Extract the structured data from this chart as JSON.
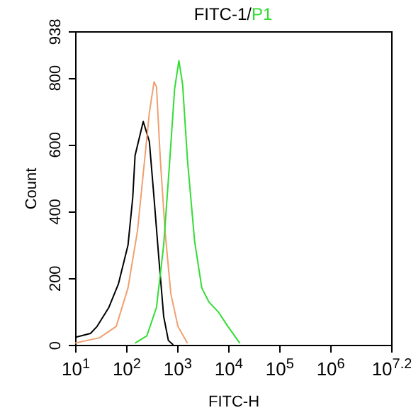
{
  "chart_data": {
    "type": "line",
    "title": "FITC-1/",
    "xlabel": "FITC-H",
    "ylabel": "Count",
    "log": "x",
    "xlim": [
      10,
      15848932
    ],
    "xticks": [
      {
        "value": 10,
        "label": "10$^{1}$"
      },
      {
        "value": 100,
        "label": "10$^{2}$"
      },
      {
        "value": 1000,
        "label": "10$^{3}$"
      },
      {
        "value": 10000,
        "label": "10$^{4}$"
      },
      {
        "value": 100000,
        "label": "10$^{5}$"
      },
      {
        "value": 1000000,
        "label": "10$^{6}$"
      },
      {
        "value": 15848932,
        "label": "10$^{7.2}$"
      }
    ],
    "ylim": [
      0,
      938
    ],
    "yticks": [
      0,
      200,
      400,
      600,
      800,
      938
    ],
    "grid": false,
    "series": [
      {
        "color": "#000000",
        "x": [
          10,
          20,
          27,
          46,
          71,
          109,
          135,
          150,
          217,
          286,
          354,
          441,
          546,
          675,
          840
        ],
        "values": [
          22,
          34,
          55,
          112,
          183,
          298,
          440,
          566,
          668,
          608,
          438,
          255,
          85,
          13,
          0
        ]
      },
      {
        "color": "#f0a070",
        "x": [
          10,
          30,
          64,
          109,
          167,
          231,
          286,
          354,
          395,
          470,
          582,
          754,
          1040,
          1600
        ],
        "values": [
          5,
          21,
          55,
          170,
          340,
          553,
          694,
          787,
          771,
          553,
          340,
          153,
          55,
          5
        ]
      },
      {
        "name": "P1",
        "color": "#33dd33",
        "x": [
          150,
          256,
          395,
          546,
          720,
          896,
          1087,
          1285,
          1600,
          2210,
          3055,
          4220,
          6460,
          9930,
          17000
        ],
        "values": [
          5,
          27,
          112,
          298,
          553,
          766,
          850,
          779,
          553,
          310,
          170,
          128,
          98,
          55,
          5
        ]
      }
    ]
  }
}
